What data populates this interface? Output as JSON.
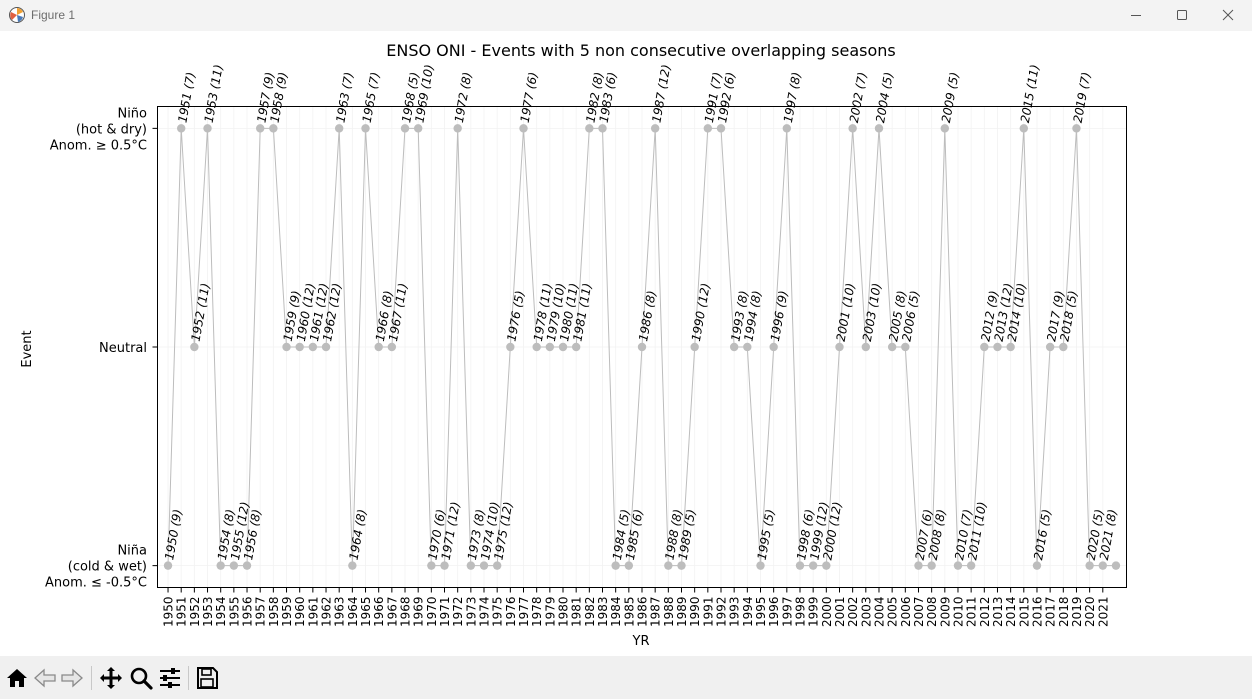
{
  "window": {
    "title": "Figure 1"
  },
  "toolbar": {
    "items": [
      "home-icon",
      "back-icon",
      "forward-icon",
      "pan-icon",
      "zoom-icon",
      "configure-icon",
      "save-icon"
    ]
  },
  "chart_data": {
    "type": "line",
    "title": "ENSO ONI - Events with 5 non consecutive overlapping seasons",
    "xlabel": "YR",
    "ylabel": "Event",
    "y_categories": [
      {
        "value": -1,
        "label": [
          "Niña",
          "(cold & wet)",
          "Anom. ≤ -0.5°C"
        ]
      },
      {
        "value": 0,
        "label": [
          "Neutral"
        ]
      },
      {
        "value": 1,
        "label": [
          "Niño",
          "(hot & dry)",
          "Anom. ≥ 0.5°C"
        ]
      }
    ],
    "x_ticks": [
      1950,
      1951,
      1952,
      1953,
      1954,
      1955,
      1956,
      1957,
      1958,
      1959,
      1960,
      1961,
      1962,
      1963,
      1964,
      1965,
      1966,
      1967,
      1968,
      1969,
      1970,
      1971,
      1972,
      1973,
      1974,
      1975,
      1976,
      1977,
      1978,
      1979,
      1980,
      1981,
      1982,
      1983,
      1984,
      1985,
      1986,
      1987,
      1988,
      1989,
      1990,
      1991,
      1992,
      1993,
      1994,
      1995,
      1996,
      1997,
      1998,
      1999,
      2000,
      2001,
      2002,
      2003,
      2004,
      2005,
      2006,
      2007,
      2008,
      2009,
      2010,
      2011,
      2012,
      2013,
      2014,
      2015,
      2016,
      2017,
      2018,
      2019,
      2020,
      2021
    ],
    "xlim": [
      1949.2,
      2022.8
    ],
    "ylim": [
      -1.1,
      1.1
    ],
    "grid": true,
    "line_color": "#bdbdbd",
    "marker_color": "#bdbdbd",
    "points": [
      {
        "x": 1950,
        "y": -1,
        "label": "1950 (9)"
      },
      {
        "x": 1951,
        "y": 1,
        "label": "1951 (7)"
      },
      {
        "x": 1952,
        "y": 0,
        "label": "1952 (11)"
      },
      {
        "x": 1953,
        "y": 1,
        "label": "1953 (11)"
      },
      {
        "x": 1954,
        "y": -1,
        "label": "1954 (8)"
      },
      {
        "x": 1955,
        "y": -1,
        "label": "1955 (12)"
      },
      {
        "x": 1956,
        "y": -1,
        "label": "1956 (8)"
      },
      {
        "x": 1957,
        "y": 1,
        "label": "1957 (9)"
      },
      {
        "x": 1958,
        "y": 1,
        "label": "1958 (9)"
      },
      {
        "x": 1959,
        "y": 0,
        "label": "1959 (9)"
      },
      {
        "x": 1960,
        "y": 0,
        "label": "1960 (12)"
      },
      {
        "x": 1961,
        "y": 0,
        "label": "1961 (12)"
      },
      {
        "x": 1962,
        "y": 0,
        "label": "1962 (12)"
      },
      {
        "x": 1963,
        "y": 1,
        "label": "1963 (7)"
      },
      {
        "x": 1964,
        "y": -1,
        "label": "1964 (8)"
      },
      {
        "x": 1965,
        "y": 1,
        "label": "1965 (7)"
      },
      {
        "x": 1966,
        "y": 0,
        "label": "1966 (8)"
      },
      {
        "x": 1967,
        "y": 0,
        "label": "1967 (11)"
      },
      {
        "x": 1968,
        "y": 1,
        "label": "1968 (5)"
      },
      {
        "x": 1969,
        "y": 1,
        "label": "1969 (10)"
      },
      {
        "x": 1970,
        "y": -1,
        "label": "1970 (6)"
      },
      {
        "x": 1971,
        "y": -1,
        "label": "1971 (12)"
      },
      {
        "x": 1972,
        "y": 1,
        "label": "1972 (8)"
      },
      {
        "x": 1973,
        "y": -1,
        "label": "1973 (8)"
      },
      {
        "x": 1974,
        "y": -1,
        "label": "1974 (10)"
      },
      {
        "x": 1975,
        "y": -1,
        "label": "1975 (12)"
      },
      {
        "x": 1976,
        "y": 0,
        "label": "1976 (5)"
      },
      {
        "x": 1977,
        "y": 1,
        "label": "1977 (6)"
      },
      {
        "x": 1978,
        "y": 0,
        "label": "1978 (11)"
      },
      {
        "x": 1979,
        "y": 0,
        "label": "1979 (10)"
      },
      {
        "x": 1980,
        "y": 0,
        "label": "1980 (11)"
      },
      {
        "x": 1981,
        "y": 0,
        "label": "1981 (11)"
      },
      {
        "x": 1982,
        "y": 1,
        "label": "1982 (8)"
      },
      {
        "x": 1983,
        "y": 1,
        "label": "1983 (6)"
      },
      {
        "x": 1984,
        "y": -1,
        "label": "1984 (5)"
      },
      {
        "x": 1985,
        "y": -1,
        "label": "1985 (6)"
      },
      {
        "x": 1986,
        "y": 0,
        "label": "1986 (8)"
      },
      {
        "x": 1987,
        "y": 1,
        "label": "1987 (12)"
      },
      {
        "x": 1988,
        "y": -1,
        "label": "1988 (8)"
      },
      {
        "x": 1989,
        "y": -1,
        "label": "1989 (5)"
      },
      {
        "x": 1990,
        "y": 0,
        "label": "1990 (12)"
      },
      {
        "x": 1991,
        "y": 1,
        "label": "1991 (7)"
      },
      {
        "x": 1992,
        "y": 1,
        "label": "1992 (6)"
      },
      {
        "x": 1993,
        "y": 0,
        "label": "1993 (8)"
      },
      {
        "x": 1994,
        "y": 0,
        "label": "1994 (8)"
      },
      {
        "x": 1995,
        "y": -1,
        "label": "1995 (5)"
      },
      {
        "x": 1996,
        "y": 0,
        "label": "1996 (9)"
      },
      {
        "x": 1997,
        "y": 1,
        "label": "1997 (8)"
      },
      {
        "x": 1998,
        "y": -1,
        "label": "1998 (6)"
      },
      {
        "x": 1999,
        "y": -1,
        "label": "1999 (12)"
      },
      {
        "x": 2000,
        "y": -1,
        "label": "2000 (12)"
      },
      {
        "x": 2001,
        "y": 0,
        "label": "2001 (10)"
      },
      {
        "x": 2002,
        "y": 1,
        "label": "2002 (7)"
      },
      {
        "x": 2003,
        "y": 0,
        "label": "2003 (10)"
      },
      {
        "x": 2004,
        "y": 1,
        "label": "2004 (5)"
      },
      {
        "x": 2005,
        "y": 0,
        "label": "2005 (8)"
      },
      {
        "x": 2006,
        "y": 0,
        "label": "2006 (5)"
      },
      {
        "x": 2007,
        "y": -1,
        "label": "2007 (6)"
      },
      {
        "x": 2008,
        "y": -1,
        "label": "2008 (8)"
      },
      {
        "x": 2009,
        "y": 1,
        "label": "2009 (5)"
      },
      {
        "x": 2010,
        "y": -1,
        "label": "2010 (7)"
      },
      {
        "x": 2011,
        "y": -1,
        "label": "2011 (10)"
      },
      {
        "x": 2012,
        "y": 0,
        "label": "2012 (9)"
      },
      {
        "x": 2013,
        "y": 0,
        "label": "2013 (12)"
      },
      {
        "x": 2014,
        "y": 0,
        "label": "2014 (10)"
      },
      {
        "x": 2015,
        "y": 1,
        "label": "2015 (11)"
      },
      {
        "x": 2016,
        "y": -1,
        "label": "2016 (5)"
      },
      {
        "x": 2017,
        "y": 0,
        "label": "2017 (9)"
      },
      {
        "x": 2018,
        "y": 0,
        "label": "2018 (5)"
      },
      {
        "x": 2019,
        "y": 1,
        "label": "2019 (7)"
      },
      {
        "x": 2020,
        "y": -1,
        "label": "2020 (5)"
      },
      {
        "x": 2021,
        "y": -1,
        "label": "2021 (8)"
      },
      {
        "x": 2022,
        "y": -1,
        "label": ""
      }
    ]
  }
}
